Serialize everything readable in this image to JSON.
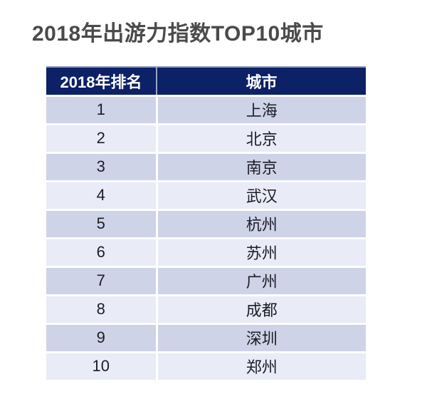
{
  "title": "2018年出游力指数TOP10城市",
  "chart_data": {
    "type": "table",
    "title": "2018年出游力指数TOP10城市",
    "columns": [
      "2018年排名",
      "城市"
    ],
    "rows": [
      {
        "rank": "1",
        "city": "上海"
      },
      {
        "rank": "2",
        "city": "北京"
      },
      {
        "rank": "3",
        "city": "南京"
      },
      {
        "rank": "4",
        "city": "武汉"
      },
      {
        "rank": "5",
        "city": "杭州"
      },
      {
        "rank": "6",
        "city": "苏州"
      },
      {
        "rank": "7",
        "city": "广州"
      },
      {
        "rank": "8",
        "city": "成都"
      },
      {
        "rank": "9",
        "city": "深圳"
      },
      {
        "rank": "10",
        "city": "郑州"
      }
    ],
    "layout": {
      "header_position": "top",
      "banded_rows": true,
      "grid": "white-separators"
    }
  },
  "colors": {
    "header_bg": "#0c2166",
    "header_text": "#ffffff",
    "row_odd_bg": "#ced3e7",
    "row_even_bg": "#e9ebf6",
    "title_text": "#4a4a4a",
    "body_text": "#1c1c26",
    "separator": "#ffffff"
  }
}
